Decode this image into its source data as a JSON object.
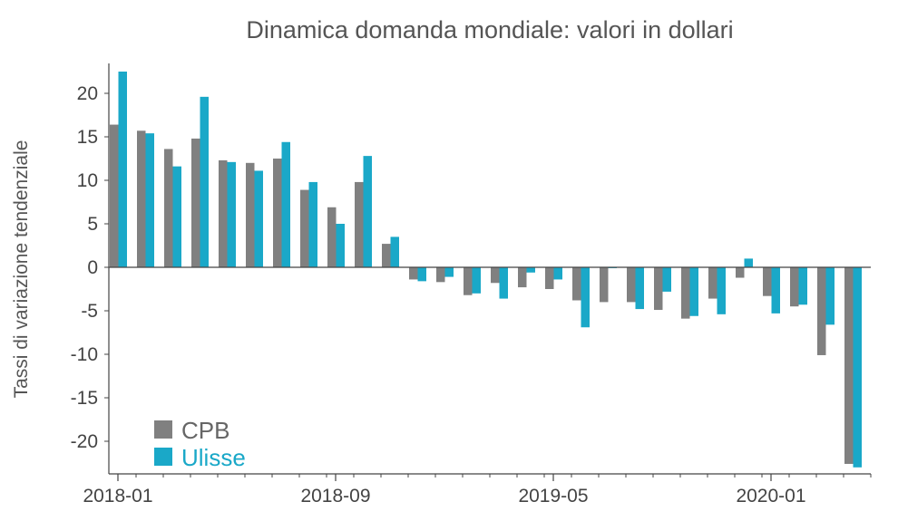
{
  "chart_data": {
    "type": "bar",
    "title": "Dinamica domanda mondiale: valori in dollari",
    "xlabel": "",
    "ylabel": "Tassi di variazione tendenziale",
    "ylim": [
      -23.5,
      23.5
    ],
    "yticks": [
      20,
      15,
      10,
      5,
      0,
      -5,
      -10,
      -15,
      -20
    ],
    "categories": [
      "2018-01",
      "2018-02",
      "2018-03",
      "2018-04",
      "2018-05",
      "2018-06",
      "2018-07",
      "2018-08",
      "2018-09",
      "2018-10",
      "2018-11",
      "2018-12",
      "2019-01",
      "2019-02",
      "2019-03",
      "2019-04",
      "2019-05",
      "2019-06",
      "2019-07",
      "2019-08",
      "2019-09",
      "2019-10",
      "2019-11",
      "2019-12",
      "2020-01",
      "2020-02",
      "2020-03",
      "2020-04"
    ],
    "x_tick_labels": [
      "2018-01",
      "2018-09",
      "2019-05",
      "2020-01"
    ],
    "x_tick_positions": [
      0,
      8,
      16,
      24
    ],
    "series": [
      {
        "name": "CPB",
        "color": "#808080",
        "values": [
          16.4,
          15.7,
          13.6,
          14.8,
          12.3,
          12.0,
          12.5,
          8.9,
          6.9,
          9.8,
          2.7,
          -1.4,
          -1.7,
          -3.2,
          -1.8,
          -2.3,
          -2.5,
          -3.8,
          -4.0,
          -4.0,
          -4.9,
          -5.9,
          -3.6,
          -1.2,
          -3.3,
          -4.5,
          -10.1,
          -22.6
        ]
      },
      {
        "name": "Ulisse",
        "color": "#1aa8c8",
        "values": [
          22.5,
          15.4,
          11.6,
          19.6,
          12.1,
          11.1,
          14.4,
          9.8,
          5.0,
          12.8,
          3.5,
          -1.6,
          -1.1,
          -3.0,
          -3.6,
          -0.6,
          -1.4,
          -6.9,
          -0.1,
          -4.8,
          -2.8,
          -5.6,
          -5.4,
          1.0,
          -5.3,
          -4.3,
          -6.6,
          -23.0
        ]
      }
    ],
    "legend_position": "bottom-left",
    "grid": false
  }
}
